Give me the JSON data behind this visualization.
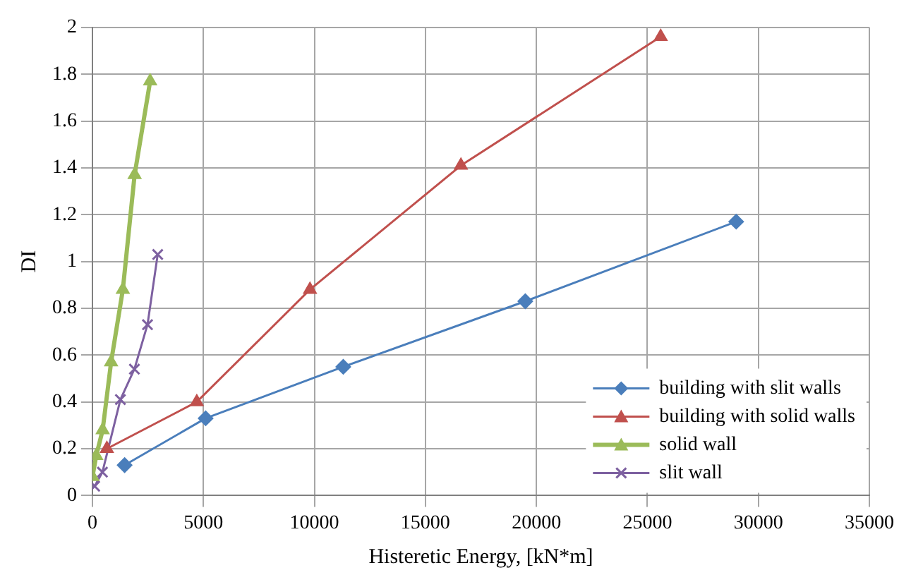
{
  "chart_data": {
    "type": "line",
    "xlabel": "Histeretic Energy, [kN*m]",
    "ylabel": "DI",
    "xlim": [
      0,
      35000
    ],
    "xticks": [
      0,
      5000,
      10000,
      15000,
      20000,
      25000,
      30000,
      35000
    ],
    "ylim": [
      0,
      2
    ],
    "yticks": [
      0,
      0.2,
      0.4,
      0.6,
      0.8,
      1,
      1.2,
      1.4,
      1.6,
      1.8,
      2
    ],
    "grid": true,
    "legend": "bottom right",
    "series": [
      {
        "name": "building with slit walls",
        "color": "#4a7ebb",
        "marker": "diamond",
        "x": [
          1450,
          5100,
          11300,
          19500,
          29000
        ],
        "values": [
          0.13,
          0.33,
          0.55,
          0.83,
          1.17
        ]
      },
      {
        "name": "building with solid walls",
        "color": "#c0504d",
        "marker": "triangle",
        "x": [
          650,
          4700,
          9800,
          16600,
          25600
        ],
        "values": [
          0.2,
          0.4,
          0.88,
          1.41,
          1.96
        ]
      },
      {
        "name": "solid wall",
        "color": "#9bbb59",
        "marker": "triangle",
        "x": [
          0,
          170,
          460,
          840,
          1370,
          1900,
          2600
        ],
        "values": [
          0.08,
          0.17,
          0.28,
          0.57,
          0.88,
          1.37,
          1.77
        ]
      },
      {
        "name": "slit wall",
        "color": "#7d60a0",
        "marker": "cross",
        "x": [
          100,
          450,
          1260,
          1890,
          2480,
          2940
        ],
        "values": [
          0.04,
          0.1,
          0.41,
          0.54,
          0.73,
          1.03
        ]
      }
    ]
  }
}
